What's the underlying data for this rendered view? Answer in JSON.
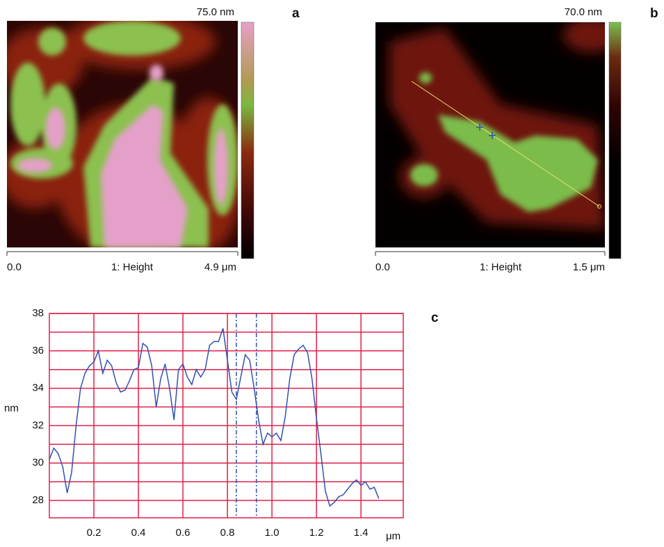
{
  "panel_a": {
    "label": "a",
    "scale_max": "75.0 nm",
    "axis_start": "0.0",
    "axis_title": "1: Height",
    "axis_end": "4.9 μm"
  },
  "panel_b": {
    "label": "b",
    "scale_max": "70.0 nm",
    "axis_start": "0.0",
    "axis_title": "1: Height",
    "axis_end": "1.5 μm"
  },
  "chart_data": {
    "type": "line",
    "label": "c",
    "ylabel": "nm",
    "xlabel": "μm",
    "color": "#3050b0",
    "grid_color": "#e0204a",
    "x": [
      0,
      0.02,
      0.04,
      0.06,
      0.08,
      0.1,
      0.12,
      0.14,
      0.16,
      0.18,
      0.2,
      0.22,
      0.24,
      0.26,
      0.28,
      0.3,
      0.32,
      0.34,
      0.36,
      0.38,
      0.4,
      0.42,
      0.44,
      0.46,
      0.48,
      0.5,
      0.52,
      0.54,
      0.56,
      0.58,
      0.6,
      0.62,
      0.64,
      0.66,
      0.68,
      0.7,
      0.72,
      0.74,
      0.76,
      0.78,
      0.8,
      0.82,
      0.84,
      0.86,
      0.88,
      0.9,
      0.92,
      0.94,
      0.96,
      0.98,
      1,
      1.02,
      1.04,
      1.06,
      1.08,
      1.1,
      1.12,
      1.14,
      1.16,
      1.18,
      1.2,
      1.22,
      1.24,
      1.26,
      1.28,
      1.3,
      1.32,
      1.34,
      1.36,
      1.38,
      1.4,
      1.42,
      1.44,
      1.46,
      1.48
    ],
    "values": [
      30.2,
      30.8,
      30.5,
      29.8,
      28.4,
      29.5,
      32.0,
      34.0,
      34.8,
      35.2,
      35.4,
      36.0,
      34.8,
      35.5,
      35.2,
      34.3,
      33.8,
      33.9,
      34.4,
      35.0,
      35.1,
      36.4,
      36.2,
      35.2,
      33.0,
      34.5,
      35.3,
      34.0,
      32.3,
      35.0,
      35.3,
      34.6,
      34.2,
      35.0,
      34.6,
      35.0,
      36.3,
      36.5,
      36.5,
      37.2,
      35.5,
      33.8,
      33.4,
      34.6,
      35.8,
      35.5,
      34.0,
      32.3,
      31.0,
      31.6,
      31.4,
      31.6,
      31.2,
      32.5,
      34.5,
      35.8,
      36.1,
      36.3,
      35.9,
      34.5,
      32.4,
      30.5,
      28.5,
      27.7,
      27.9,
      28.2,
      28.3,
      28.6,
      28.9,
      29.1,
      28.8,
      29.0,
      28.6,
      28.7,
      28.1
    ],
    "xlim": [
      0,
      1.59
    ],
    "ylim": [
      27.07,
      38
    ],
    "xticks": [
      0.2,
      0.4,
      0.6,
      0.8,
      {
        "value": 1,
        "label": "1.0"
      },
      1.2,
      1.4
    ],
    "yticks": [
      28,
      30,
      32,
      34,
      36,
      38
    ],
    "minor_yticks": [
      29,
      31,
      33,
      35,
      37
    ],
    "markers": [
      0.84,
      0.93
    ]
  }
}
